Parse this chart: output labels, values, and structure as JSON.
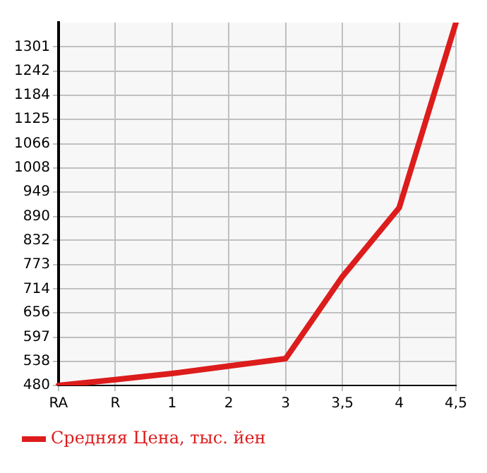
{
  "chart_data": {
    "type": "line",
    "categories": [
      "RA",
      "R",
      "1",
      "2",
      "3",
      "3,5",
      "4",
      "4,5"
    ],
    "series": [
      {
        "name": "Средняя Цена, тыс. йен",
        "color": "#dd1c1c",
        "values": [
          480,
          494,
          509,
          527,
          545,
          744,
          911,
          1360
        ]
      }
    ],
    "ylim": [
      480,
      1360
    ],
    "yticks": [
      480,
      538,
      597,
      656,
      714,
      773,
      832,
      890,
      949,
      1008,
      1066,
      1125,
      1184,
      1242,
      1301
    ],
    "grid": true,
    "legend": "bottom",
    "marker": "none",
    "line_style": "solid"
  }
}
